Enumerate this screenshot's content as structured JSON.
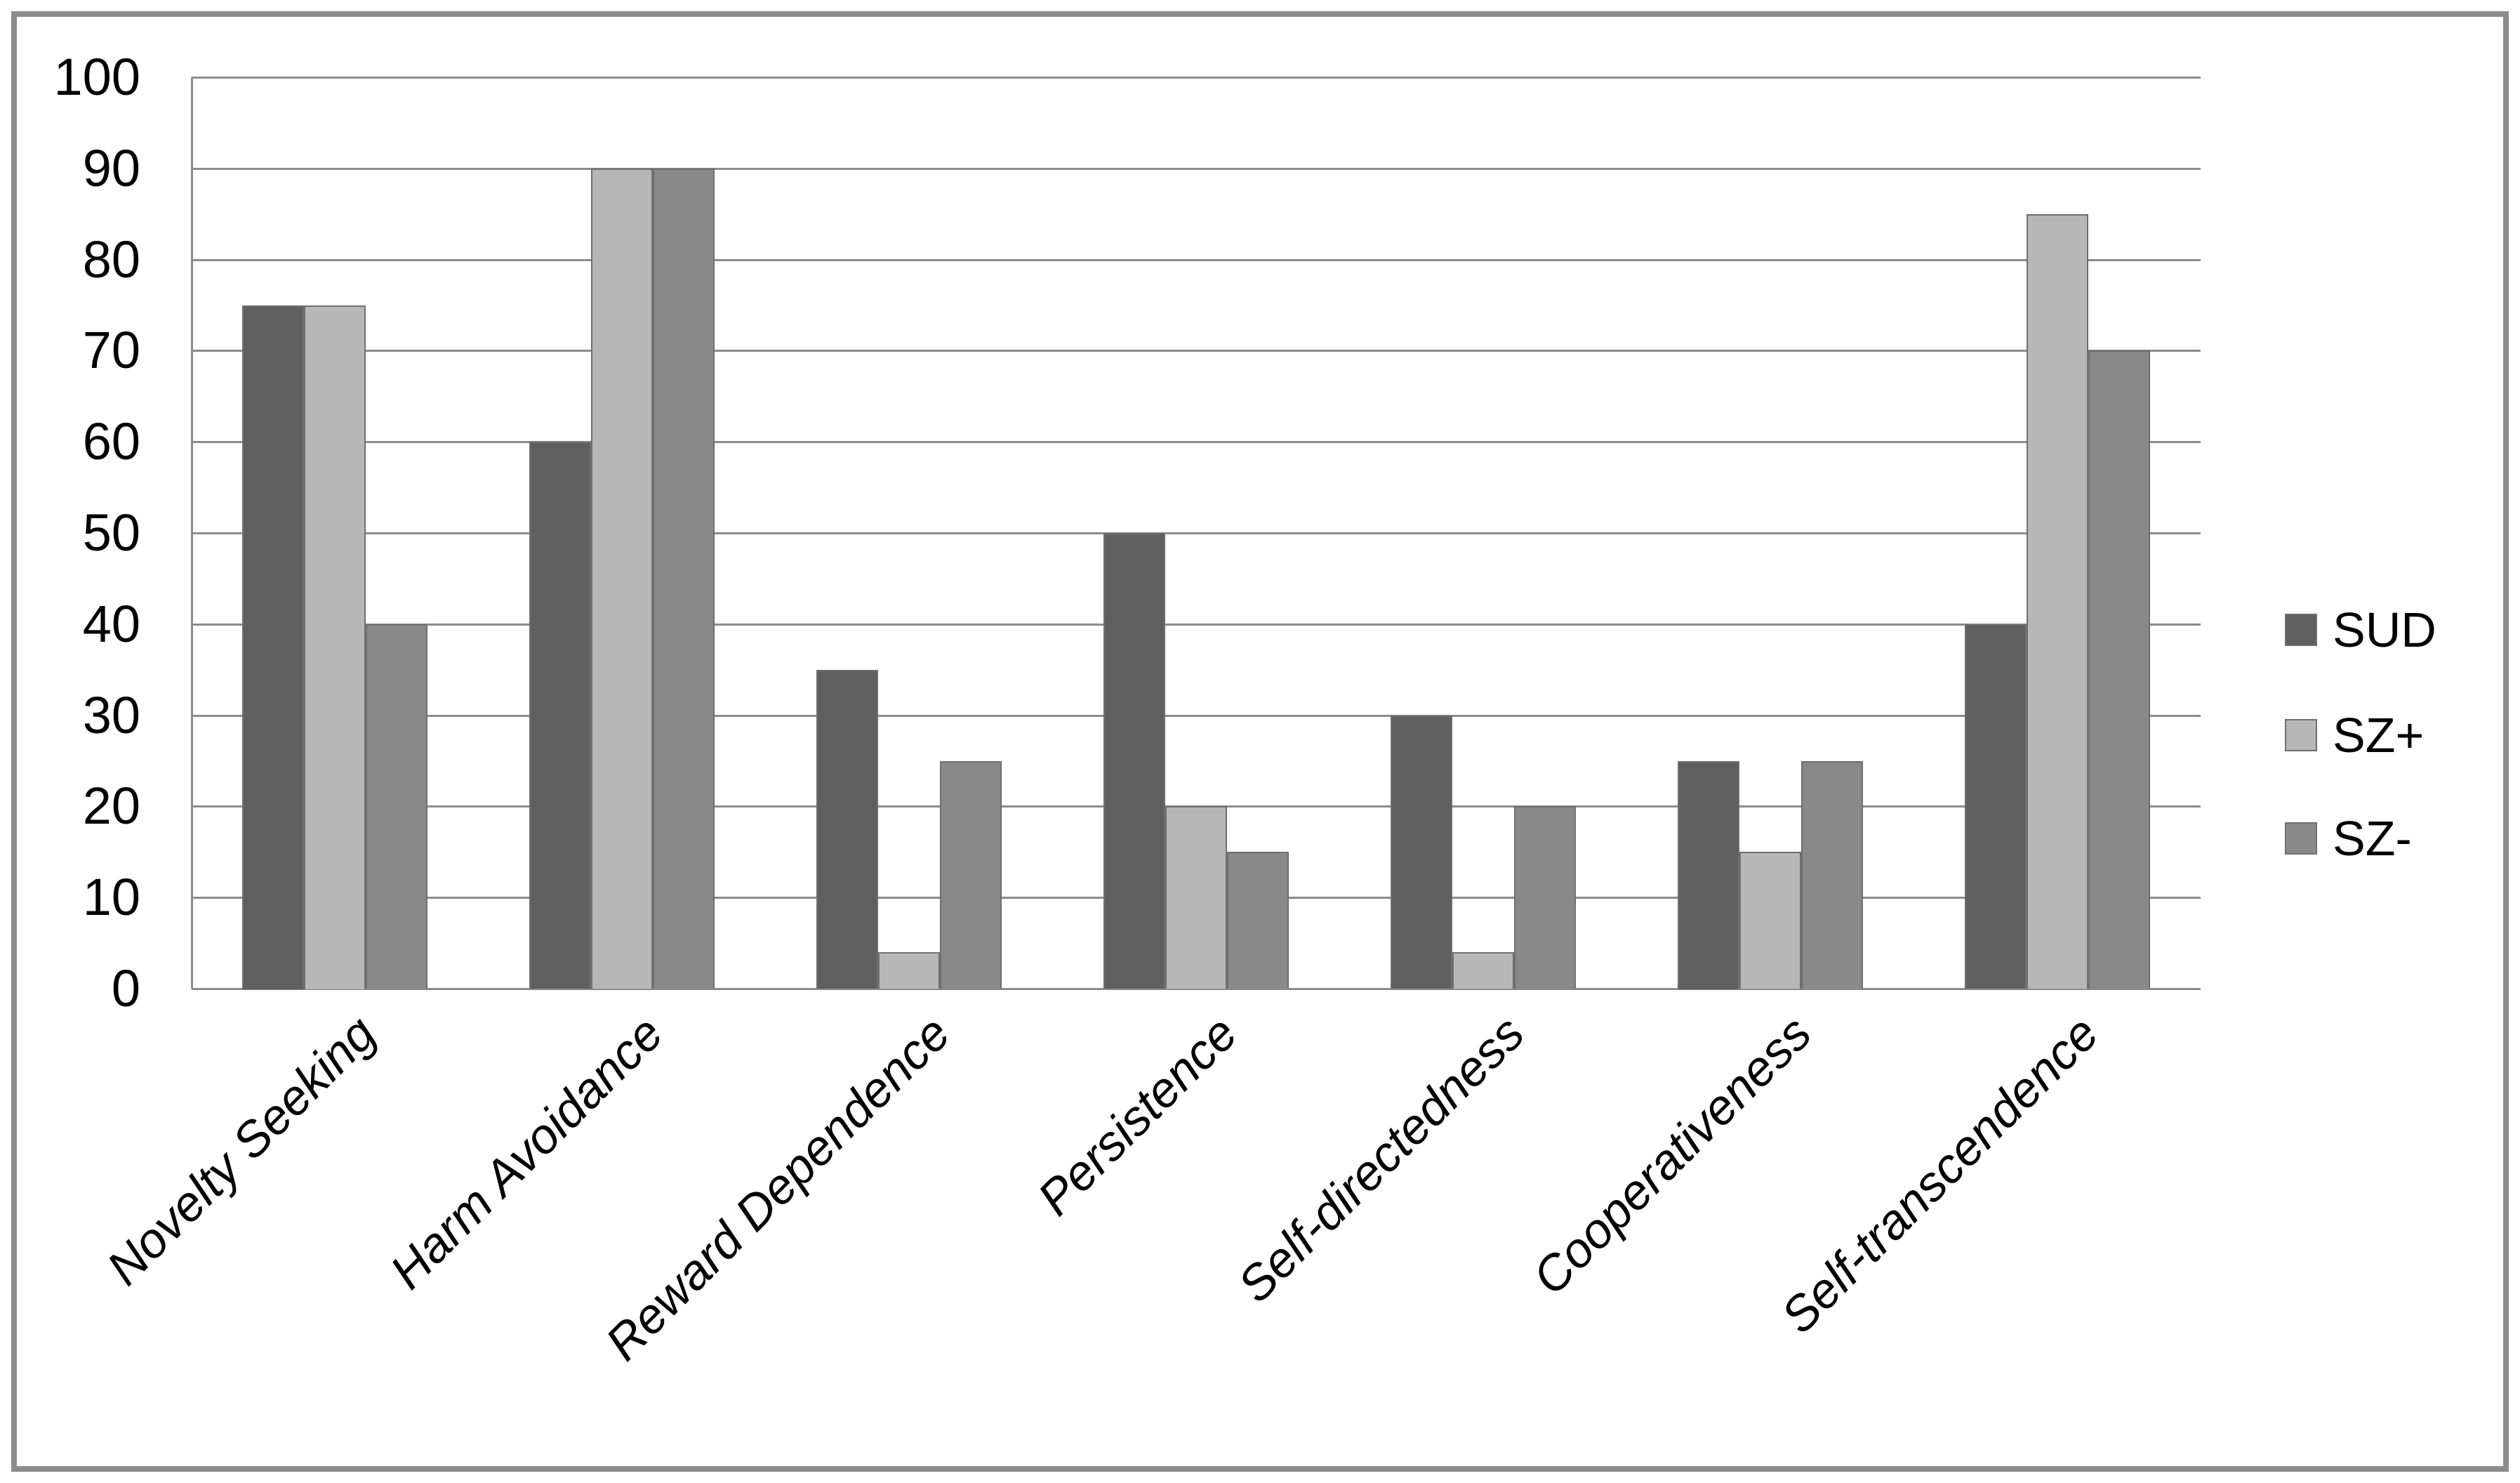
{
  "figure": {
    "background": "#ffffff",
    "border_color": "#8c8c8c"
  },
  "chart_data": {
    "type": "bar",
    "title": "",
    "xlabel": "",
    "ylabel": "",
    "categories": [
      "Novelty Seeking",
      "Harm Avoidance",
      "Reward Dependence",
      "Persistence",
      "Self-directedness",
      "Cooperativeness",
      "Self-transcendence"
    ],
    "series": [
      {
        "name": "SUD",
        "color": "#5f5f5f",
        "values": [
          75,
          60,
          35,
          50,
          30,
          25,
          40
        ]
      },
      {
        "name": "SZ+",
        "color": "#b7b7b7",
        "values": [
          75,
          90,
          4,
          20,
          4,
          15,
          85
        ]
      },
      {
        "name": "SZ-",
        "color": "#898989",
        "values": [
          40,
          90,
          25,
          15,
          20,
          25,
          70
        ]
      }
    ],
    "ylim": [
      0,
      100
    ],
    "yticks": [
      0,
      10,
      20,
      30,
      40,
      50,
      60,
      70,
      80,
      90,
      100
    ],
    "grid": true,
    "gridline_color": "#8c8c8c",
    "bar_outline_color": "#6f6f6f",
    "legend_position": "right"
  }
}
